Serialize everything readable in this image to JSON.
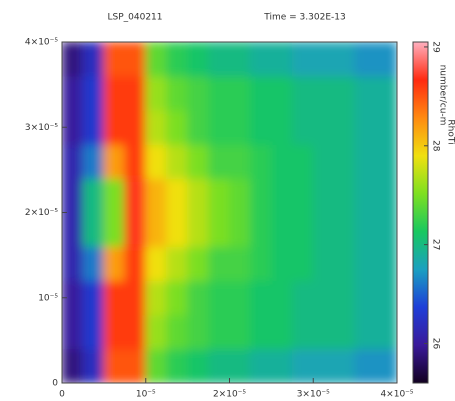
{
  "chart_data": {
    "type": "heatmap",
    "title": "LSP_040211",
    "subtitle": "Time =  3.302E-13",
    "colorbar_label": "RhoTi",
    "colorbar_units": "number/cu-m",
    "xlim": [
      0,
      4e-05
    ],
    "ylim": [
      0,
      4e-05
    ],
    "xticks": [
      0,
      {
        "value": 1e-05,
        "label": "10⁻⁵"
      },
      {
        "value": 2e-05,
        "label": "2×10⁻⁵"
      },
      {
        "value": 3e-05,
        "label": "3×10⁻⁵"
      },
      {
        "value": 4e-05,
        "label": "4×10⁻⁵"
      }
    ],
    "yticks": [
      0,
      {
        "value": 1e-05,
        "label": "10⁻⁵"
      },
      {
        "value": 2e-05,
        "label": "2×10⁻⁵"
      },
      {
        "value": 3e-05,
        "label": "3×10⁻⁵"
      },
      {
        "value": 4e-05,
        "label": "4×10⁻⁵"
      }
    ],
    "clim": [
      25.6,
      29.05
    ],
    "cticks": [
      26,
      27,
      28,
      29
    ],
    "colormap": [
      "#120020",
      "#3a1a9a",
      "#1e3ed8",
      "#1aa0c0",
      "#18c860",
      "#7ee020",
      "#f0e010",
      "#ff8a10",
      "#ff2a10",
      "#ffb0c0"
    ],
    "z": [
      [
        25.9,
        26.2,
        28.5,
        28.5,
        27.4,
        27.2,
        27.1,
        27.0,
        27.0,
        26.9,
        26.9,
        26.8,
        26.8,
        26.8,
        26.7,
        26.7
      ],
      [
        26.0,
        26.3,
        28.6,
        28.6,
        27.6,
        27.4,
        27.3,
        27.2,
        27.2,
        27.1,
        27.1,
        27.0,
        27.0,
        27.0,
        26.9,
        26.9
      ],
      [
        26.0,
        26.3,
        28.6,
        28.6,
        27.7,
        27.5,
        27.3,
        27.2,
        27.2,
        27.1,
        27.1,
        27.0,
        27.0,
        27.0,
        26.9,
        26.9
      ],
      [
        26.1,
        26.6,
        28.2,
        28.6,
        27.9,
        27.7,
        27.5,
        27.3,
        27.3,
        27.2,
        27.1,
        27.1,
        27.0,
        27.0,
        26.9,
        26.9
      ],
      [
        26.1,
        27.0,
        27.5,
        28.7,
        28.1,
        27.9,
        27.7,
        27.5,
        27.4,
        27.2,
        27.1,
        27.1,
        27.0,
        27.0,
        26.9,
        26.9
      ],
      [
        26.1,
        27.0,
        27.5,
        28.7,
        28.1,
        27.9,
        27.7,
        27.5,
        27.4,
        27.2,
        27.1,
        27.1,
        27.0,
        27.0,
        26.9,
        26.9
      ],
      [
        26.1,
        26.6,
        28.2,
        28.6,
        27.9,
        27.7,
        27.5,
        27.3,
        27.3,
        27.2,
        27.1,
        27.1,
        27.0,
        27.0,
        26.9,
        26.9
      ],
      [
        26.0,
        26.3,
        28.6,
        28.6,
        27.7,
        27.5,
        27.3,
        27.2,
        27.2,
        27.1,
        27.1,
        27.0,
        27.0,
        27.0,
        26.9,
        26.9
      ],
      [
        26.0,
        26.3,
        28.6,
        28.6,
        27.6,
        27.4,
        27.3,
        27.2,
        27.2,
        27.1,
        27.1,
        27.0,
        27.0,
        27.0,
        26.9,
        26.9
      ],
      [
        25.9,
        26.2,
        28.5,
        28.5,
        27.4,
        27.2,
        27.1,
        27.0,
        27.0,
        26.9,
        26.9,
        26.8,
        26.8,
        26.8,
        26.7,
        26.7
      ]
    ]
  }
}
